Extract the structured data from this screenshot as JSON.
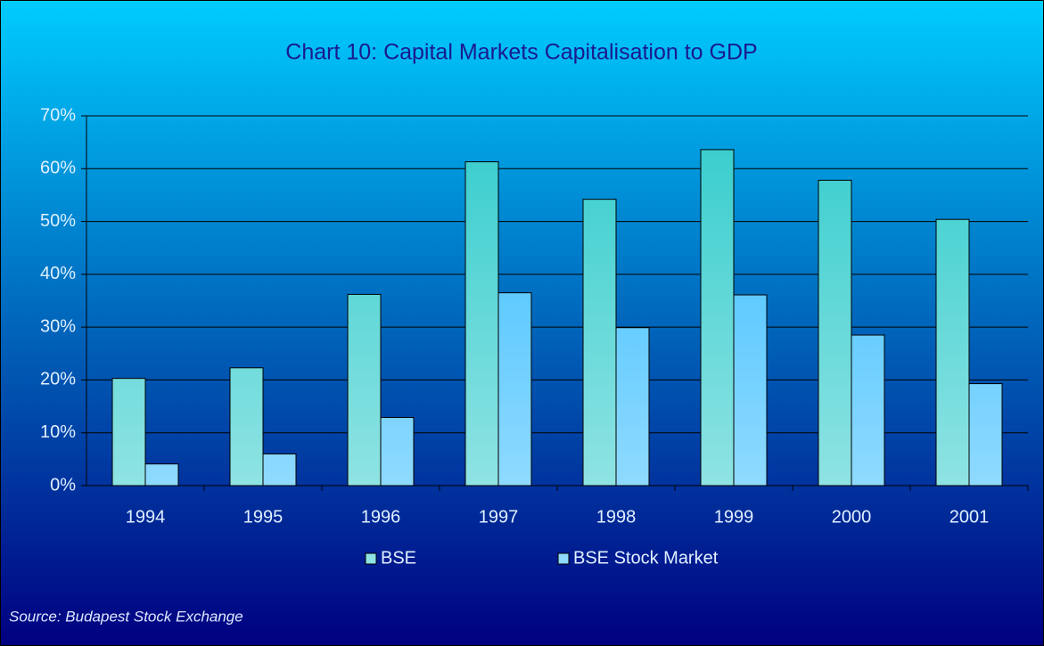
{
  "chart_data": {
    "type": "bar",
    "title": "Chart 10: Capital Markets Capitalisation to GDP",
    "categories": [
      "1994",
      "1995",
      "1996",
      "1997",
      "1998",
      "1999",
      "2000",
      "2001"
    ],
    "series": [
      {
        "name": "BSE",
        "color": "#33cccc",
        "values": [
          20.3,
          22.3,
          36.2,
          61.3,
          54.2,
          63.6,
          57.8,
          50.4
        ]
      },
      {
        "name": "BSE Stock Market",
        "color": "#33bbff",
        "values": [
          4.1,
          6.0,
          12.9,
          36.5,
          29.9,
          36.1,
          28.5,
          19.3
        ]
      }
    ],
    "ylim": [
      0,
      70
    ],
    "yticks": [
      {
        "value": 0,
        "label": "0%"
      },
      {
        "value": 10,
        "label": "10%"
      },
      {
        "value": 20,
        "label": "20%"
      },
      {
        "value": 30,
        "label": "30%"
      },
      {
        "value": 40,
        "label": "40%"
      },
      {
        "value": 50,
        "label": "50%"
      },
      {
        "value": 60,
        "label": "60%"
      },
      {
        "value": 70,
        "label": "70%"
      }
    ],
    "grid": true,
    "legend": "bottom",
    "source": "Source:  Budapest  Stock Exchange"
  }
}
